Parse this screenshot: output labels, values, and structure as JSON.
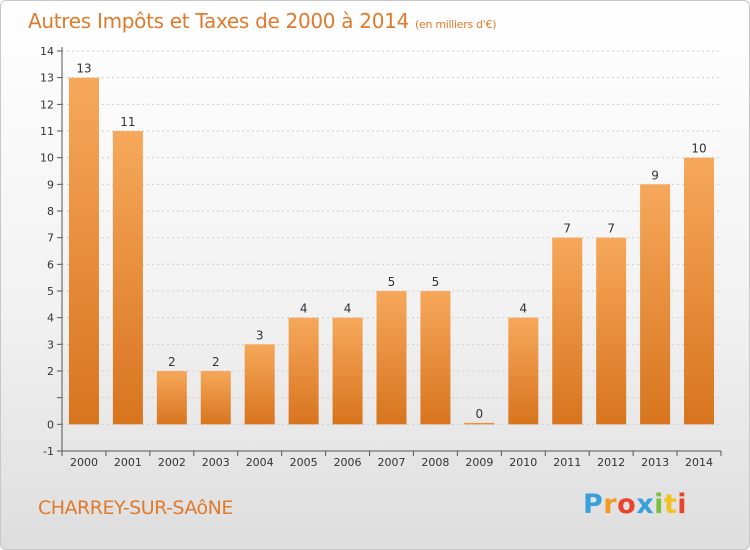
{
  "header": {
    "title": "Autres Impôts et Taxes de 2000 à 2014",
    "unit": "(en milliers d'€)"
  },
  "footer": {
    "commune": "CHARREY-SUR-SAôNE",
    "logo_letters": [
      "P",
      "r",
      "o",
      "x",
      "i",
      "t",
      "i"
    ],
    "logo_colors": [
      "#3aa0dc",
      "#f29a22",
      "#e8452c",
      "#3aa0dc",
      "#7bbf3a",
      "#f2c31c",
      "#e8452c"
    ]
  },
  "colors": {
    "bar_light": "#f6a85a",
    "bar_dark": "#d8741e",
    "axis": "#555555",
    "grid": "#cfcfcf",
    "title": "#e07a2c"
  },
  "chart_data": {
    "type": "bar",
    "categories": [
      "2000",
      "2001",
      "2002",
      "2003",
      "2004",
      "2005",
      "2006",
      "2007",
      "2008",
      "2009",
      "2010",
      "2011",
      "2012",
      "2013",
      "2014"
    ],
    "values": [
      13,
      11,
      2,
      2,
      3,
      4,
      4,
      5,
      5,
      0,
      4,
      7,
      7,
      9,
      10
    ],
    "ylim": [
      -1,
      14
    ],
    "yticks": [
      -1,
      0,
      1,
      2,
      3,
      4,
      5,
      6,
      7,
      8,
      9,
      10,
      11,
      12,
      13,
      14
    ],
    "ytick_labels": [
      "-1",
      "0",
      "",
      "2",
      "3",
      "4",
      "5",
      "6",
      "7",
      "8",
      "9",
      "10",
      "11",
      "12",
      "13",
      "14"
    ],
    "title": "Autres Impôts et Taxes de 2000 à 2014",
    "xlabel": "",
    "ylabel": "(en milliers d'€)",
    "grid": true
  }
}
